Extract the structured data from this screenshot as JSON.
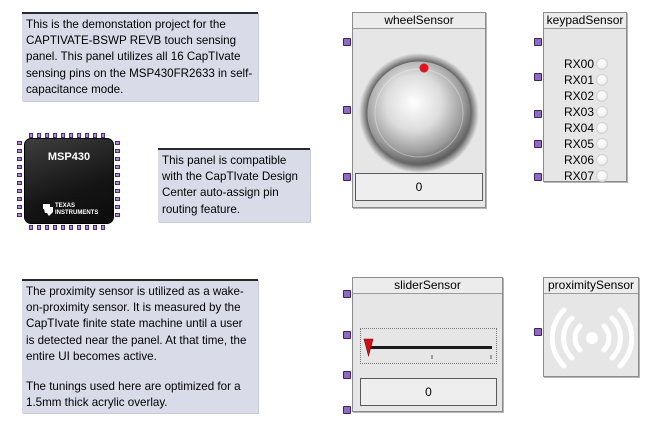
{
  "notes": {
    "intro": "This is the demonstation project for the CAPTIVATE-BSWP REVB touch sensing panel. This panel utilizes all 16 CapTIvate sensing pins on the MSP430FR2633 in self-capacitance mode.",
    "compat": "This panel is compatible with the CapTIvate Design Center auto-assign pin routing feature.",
    "proximity_p1": "The proximity sensor is utilized as a wake-on-proximity sensor. It is measured by the CapTIvate finite state machine until a user is detected near the panel. At that time, the entire UI becomes active.",
    "proximity_p2": "The tunings used here are optimized for a 1.5mm thick acrylic overlay."
  },
  "chip": {
    "title": "MSP430",
    "vendor_line1": "TEXAS",
    "vendor_line2": "INSTRUMENTS",
    "icon": "texas-instruments-logo"
  },
  "wheel_sensor": {
    "title": "wheelSensor",
    "value": "0",
    "knob_position": 0
  },
  "keypad_sensor": {
    "title": "keypadSensor",
    "channels": [
      "RX00",
      "RX01",
      "RX02",
      "RX03",
      "RX04",
      "RX05",
      "RX06",
      "RX07"
    ]
  },
  "slider_sensor": {
    "title": "sliderSensor",
    "value": "0",
    "thumb_position": 0
  },
  "proximity_sensor": {
    "title": "proximitySensor",
    "icon": "proximity-waves-icon"
  },
  "colors": {
    "note_bg": "#d9dce8",
    "panel_bg": "#e6e6e6",
    "pin": "#9268c6",
    "wheel_indicator": "#e0141e",
    "slider_thumb": "#d01018"
  }
}
